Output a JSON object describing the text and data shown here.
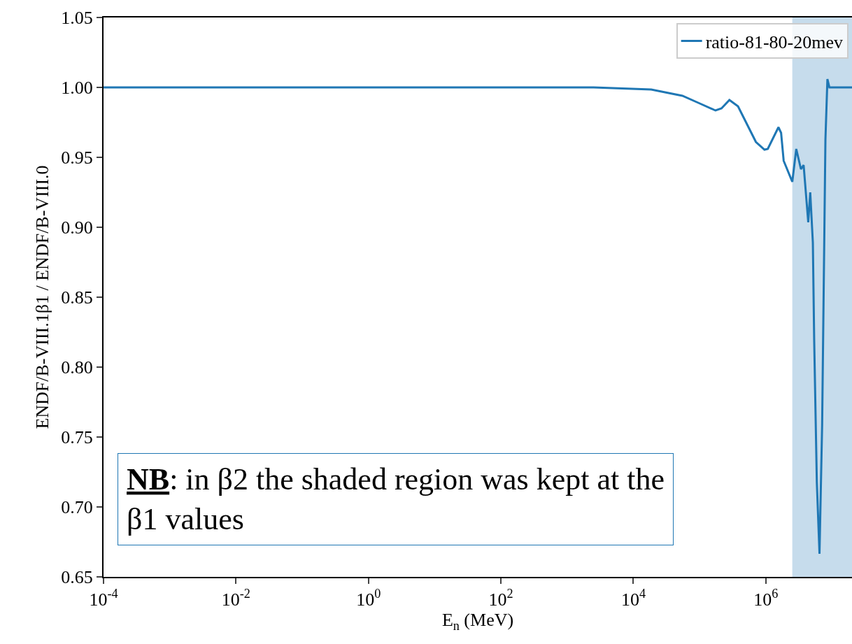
{
  "chart_data": {
    "type": "line",
    "xlabel": "E$_{n}$ (MeV)",
    "ylabel": "ENDF/B-VIII.1β1 / ENDF/B-VIII.0",
    "x": [
      0.0001,
      2510,
      18600,
      55000,
      95500,
      174000,
      214000,
      282000,
      380000,
      708000,
      955000,
      1070000,
      1550000,
      1700000,
      1860000,
      2510000,
      2880000,
      3390000,
      3720000,
      4370000,
      4680000,
      5130000,
      5370000,
      5890000,
      6460000,
      7080000,
      7940000,
      8510000,
      9120000,
      20000000
    ],
    "series": [
      {
        "name": "ratio-81-80-20mev",
        "color": "#1f77b4",
        "values": [
          1.0,
          1.0,
          0.9985,
          0.994,
          0.989,
          0.9835,
          0.985,
          0.991,
          0.9865,
          0.961,
          0.9555,
          0.956,
          0.9715,
          0.9675,
          0.9475,
          0.9325,
          0.956,
          0.9415,
          0.9445,
          0.9035,
          0.925,
          0.889,
          0.8195,
          0.7175,
          0.6665,
          0.7585,
          0.9625,
          1.006,
          1.0,
          1.0
        ]
      }
    ],
    "log": "x",
    "xlim": [
      0.0001,
      20000000
    ],
    "xticks": [
      {
        "value": 0.0001,
        "label": "10$^{-4}$"
      },
      {
        "value": 0.01,
        "label": "10$^{-2}$"
      },
      {
        "value": 1,
        "label": "10$^{0}$"
      },
      {
        "value": 100,
        "label": "10$^{2}$"
      },
      {
        "value": 10000,
        "label": "10$^{4}$"
      },
      {
        "value": 1000000,
        "label": "10$^{6}$"
      }
    ],
    "ylim": [
      0.65,
      1.05
    ],
    "yticks": [
      0.65,
      {
        "value": 0.7,
        "label": "0.70"
      },
      0.75,
      {
        "value": 0.8,
        "label": "0.80"
      },
      0.85,
      {
        "value": 0.9,
        "label": "0.90"
      },
      0.95,
      {
        "value": 1.0,
        "label": "1.00"
      },
      1.05
    ],
    "bands": [
      {
        "axis": "x",
        "from": 2510000,
        "to": 20000000,
        "color": "#c6dcec"
      }
    ],
    "annotations": [
      "NB: in β2 the shaded region was kept at the\nβ1 values"
    ],
    "grid": false,
    "legend": "top right",
    "marker": "none",
    "line_style": "solid"
  }
}
